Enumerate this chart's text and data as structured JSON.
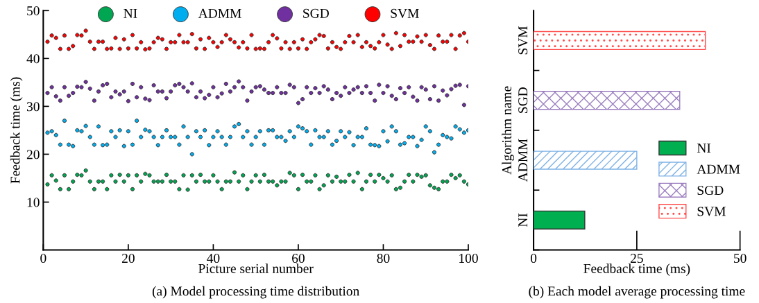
{
  "chart_data": [
    {
      "type": "scatter",
      "title": "(a) Model processing time distribution",
      "xlabel": "Picture serial number",
      "ylabel": "Feedback time (ms)",
      "xlim": [
        0,
        100
      ],
      "ylim": [
        0,
        50
      ],
      "xticks": [
        0,
        20,
        40,
        60,
        80,
        100
      ],
      "yticks": [
        10,
        20,
        30,
        40,
        50
      ],
      "grid": false,
      "legend": "top",
      "marker": "circle",
      "x": [
        1,
        2,
        3,
        4,
        5,
        6,
        7,
        8,
        9,
        10,
        11,
        12,
        13,
        14,
        15,
        16,
        17,
        18,
        19,
        20,
        21,
        22,
        23,
        24,
        25,
        26,
        27,
        28,
        29,
        30,
        31,
        32,
        33,
        34,
        35,
        36,
        37,
        38,
        39,
        40,
        41,
        42,
        43,
        44,
        45,
        46,
        47,
        48,
        49,
        50,
        51,
        52,
        53,
        54,
        55,
        56,
        57,
        58,
        59,
        60,
        61,
        62,
        63,
        64,
        65,
        66,
        67,
        68,
        69,
        70,
        71,
        72,
        73,
        74,
        75,
        76,
        77,
        78,
        79,
        80,
        81,
        82,
        83,
        84,
        85,
        86,
        87,
        88,
        89,
        90,
        91,
        92,
        93,
        94,
        95,
        96,
        97,
        98,
        99,
        100
      ],
      "series": [
        {
          "name": "NI",
          "color": "#00a651",
          "values": [
            13.7,
            15.6,
            14.5,
            12.7,
            15.6,
            12.7,
            14.3,
            15.7,
            15.6,
            16.6,
            14.3,
            12.7,
            14.3,
            14.3,
            12.7,
            15.6,
            14.3,
            15.7,
            14.3,
            15.6,
            12.7,
            15.6,
            14.3,
            15.9,
            15.6,
            14.3,
            14.3,
            14.3,
            15.7,
            14.3,
            14.3,
            12.7,
            15.6,
            12.6,
            15.6,
            14.3,
            15.7,
            14.3,
            14.3,
            15.6,
            14.3,
            12.7,
            14.3,
            14.3,
            16.2,
            14.3,
            15.6,
            12.7,
            14.3,
            15.6,
            14.3,
            15.7,
            14.3,
            14.3,
            13.5,
            14.3,
            14.3,
            16.1,
            15.6,
            12.7,
            15.7,
            14.3,
            14.3,
            15.6,
            12.7,
            13.5,
            15.6,
            14.3,
            15.3,
            14.3,
            14.3,
            15.7,
            14.3,
            16.1,
            12.7,
            14.3,
            15.7,
            14.3,
            15.7,
            15.0,
            14.3,
            15.6,
            12.7,
            13.0,
            14.3,
            15.7,
            14.3,
            15.7,
            15.3,
            15.6,
            13.5,
            13.0,
            12.7,
            14.3,
            14.3,
            15.7,
            15.0,
            15.6,
            14.3,
            13.7
          ]
        },
        {
          "name": "ADMM",
          "color": "#00aeef",
          "values": [
            24.5,
            24.8,
            24.0,
            22.0,
            27.0,
            22.0,
            21.7,
            25.0,
            24.8,
            25.9,
            23.6,
            22.0,
            25.8,
            21.9,
            22.0,
            24.8,
            23.6,
            25.0,
            21.7,
            24.8,
            22.0,
            27.0,
            23.6,
            25.1,
            24.8,
            23.6,
            21.9,
            23.6,
            25.0,
            23.6,
            23.6,
            22.0,
            25.8,
            23.6,
            20.0,
            24.8,
            23.6,
            25.0,
            21.9,
            23.6,
            24.8,
            23.6,
            22.0,
            23.6,
            25.8,
            26.3,
            23.6,
            24.8,
            22.0,
            23.6,
            24.8,
            22.0,
            25.0,
            25.0,
            23.6,
            23.6,
            22.8,
            24.8,
            23.6,
            25.8,
            25.4,
            24.8,
            22.0,
            25.0,
            23.6,
            23.6,
            24.8,
            22.0,
            22.8,
            24.8,
            23.6,
            24.6,
            21.9,
            23.6,
            23.6,
            25.4,
            22.0,
            21.9,
            21.7,
            24.8,
            22.7,
            25.8,
            24.8,
            22.0,
            22.3,
            23.6,
            23.6,
            21.7,
            23.0,
            25.8,
            24.8,
            20.4,
            22.0,
            24.0,
            23.6,
            23.3,
            25.8,
            25.2,
            24.5,
            25.0
          ]
        },
        {
          "name": "SGD",
          "color": "#7030a0",
          "values": [
            32.8,
            34.0,
            32.1,
            31.2,
            34.0,
            32.2,
            32.8,
            34.1,
            34.0,
            35.1,
            33.7,
            31.2,
            33.1,
            34.4,
            34.7,
            31.9,
            33.1,
            32.5,
            33.1,
            31.1,
            34.7,
            31.9,
            34.0,
            31.6,
            31.3,
            34.4,
            33.1,
            33.1,
            31.7,
            33.1,
            34.4,
            34.7,
            34.0,
            33.1,
            34.8,
            31.9,
            33.1,
            31.7,
            32.4,
            34.0,
            31.9,
            32.7,
            34.7,
            33.1,
            34.0,
            35.2,
            34.0,
            31.2,
            33.1,
            34.0,
            34.2,
            33.5,
            32.8,
            32.8,
            34.0,
            32.8,
            32.8,
            34.5,
            34.0,
            30.7,
            31.5,
            34.0,
            32.8,
            33.8,
            32.8,
            34.2,
            33.5,
            31.5,
            32.8,
            32.2,
            34.0,
            32.8,
            33.5,
            34.0,
            32.8,
            34.2,
            32.8,
            31.2,
            34.5,
            32.8,
            34.2,
            32.2,
            31.5,
            33.8,
            32.8,
            34.0,
            32.0,
            31.2,
            34.0,
            33.5,
            31.5,
            34.2,
            31.2,
            33.3,
            32.3,
            33.6,
            34.3,
            34.5,
            30.3,
            34.2
          ]
        },
        {
          "name": "SVM",
          "color": "#ff0000",
          "values": [
            43.5,
            44.8,
            44.3,
            42.0,
            44.8,
            42.0,
            42.6,
            44.9,
            44.8,
            45.8,
            43.5,
            42.0,
            43.5,
            43.5,
            42.0,
            42.1,
            44.3,
            42.0,
            44.0,
            42.1,
            44.9,
            42.1,
            43.4,
            41.9,
            42.1,
            43.4,
            44.3,
            44.0,
            42.0,
            43.4,
            43.4,
            44.9,
            43.4,
            43.4,
            45.1,
            42.1,
            44.0,
            42.0,
            44.3,
            43.4,
            42.4,
            43.4,
            44.9,
            44.0,
            43.4,
            42.3,
            43.4,
            42.1,
            44.9,
            42.0,
            42.1,
            42.0,
            43.4,
            44.9,
            44.2,
            42.1,
            43.4,
            42.0,
            43.4,
            42.1,
            44.0,
            42.0,
            43.4,
            44.0,
            44.9,
            44.7,
            42.1,
            43.4,
            42.4,
            42.0,
            43.4,
            44.7,
            43.4,
            44.9,
            42.4,
            43.4,
            42.6,
            42.1,
            43.4,
            44.9,
            42.9,
            42.0,
            45.3,
            42.6,
            44.9,
            43.5,
            43.5,
            44.6,
            43.5,
            44.9,
            42.8,
            42.0,
            44.8,
            43.5,
            43.5,
            44.9,
            42.0,
            44.8,
            45.3,
            43.5
          ]
        }
      ]
    },
    {
      "type": "bar",
      "orientation": "horizontal",
      "title": "(b) Each model average processing time",
      "xlabel": "Feedback time (ms)",
      "ylabel": "Algorithm name",
      "categories": [
        "SVM",
        "SGD",
        "ADMM",
        "NI"
      ],
      "series": [
        {
          "name": "NI",
          "color": "#00b050",
          "values": [
            null,
            null,
            null,
            12.4
          ]
        },
        {
          "name": "ADMM",
          "color": "#7fb2e5",
          "values": [
            null,
            null,
            25.0,
            null
          ]
        },
        {
          "name": "SGD",
          "color": "#9b7fc0",
          "values": [
            null,
            35.4,
            null,
            null
          ]
        },
        {
          "name": "SVM",
          "color": "#ff4d4d",
          "values": [
            41.6,
            null,
            null,
            null
          ]
        }
      ],
      "xlim": [
        0,
        50
      ],
      "xticks": [
        0,
        25,
        50
      ],
      "grid": false,
      "legend": "lower right"
    }
  ]
}
